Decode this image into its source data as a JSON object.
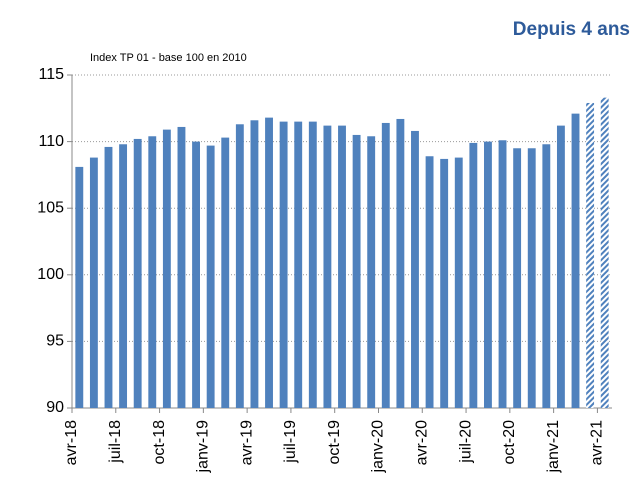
{
  "chart_data": {
    "type": "bar",
    "title": "Depuis 4 ans",
    "subtitle": "Index TP 01 - base 100 en 2010",
    "categories": [
      "avr-18",
      null,
      null,
      "juil-18",
      null,
      null,
      "oct-18",
      null,
      null,
      "janv-19",
      null,
      null,
      "avr-19",
      null,
      null,
      "juil-19",
      null,
      null,
      "oct-19",
      null,
      null,
      "janv-20",
      null,
      null,
      "avr-20",
      null,
      null,
      "juil-20",
      null,
      null,
      "oct-20",
      null,
      null,
      "janv-21",
      null,
      null,
      "avr-21"
    ],
    "values": [
      108.1,
      108.8,
      109.6,
      109.8,
      110.2,
      110.4,
      110.9,
      111.1,
      110.0,
      109.7,
      110.3,
      111.3,
      111.6,
      111.8,
      111.5,
      111.5,
      111.5,
      111.2,
      111.2,
      110.5,
      110.4,
      111.4,
      111.7,
      110.8,
      108.9,
      108.7,
      108.8,
      109.9,
      110.0,
      110.1,
      109.5,
      109.5,
      109.8,
      111.2,
      112.1,
      112.9,
      113.3
    ],
    "hatched": [
      false,
      false,
      false,
      false,
      false,
      false,
      false,
      false,
      false,
      false,
      false,
      false,
      false,
      false,
      false,
      false,
      false,
      false,
      false,
      false,
      false,
      false,
      false,
      false,
      false,
      false,
      false,
      false,
      false,
      false,
      false,
      false,
      false,
      false,
      false,
      true,
      true
    ],
    "color": "#4f81bd",
    "ylim": [
      90,
      115
    ],
    "yticks": [
      90,
      95,
      100,
      105,
      110,
      115
    ],
    "grid": true
  }
}
